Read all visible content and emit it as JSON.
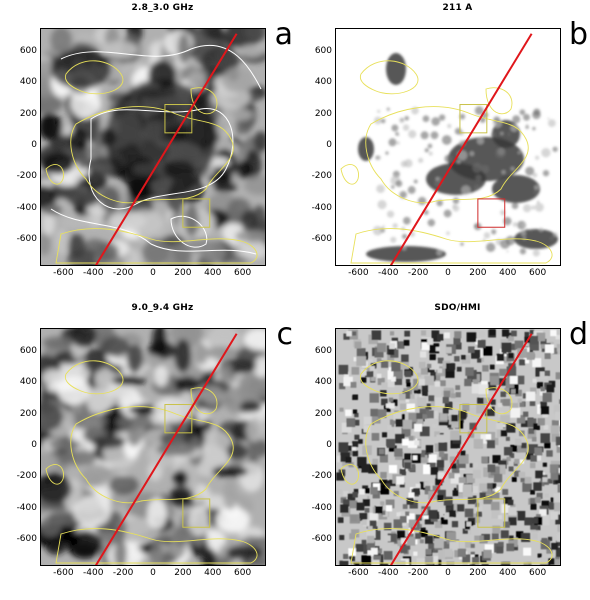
{
  "figure": {
    "panels": [
      {
        "id": "a",
        "title": "2.8_3.0 GHz",
        "letter": "a",
        "style": "radio-low"
      },
      {
        "id": "b",
        "title": "211 A",
        "letter": "b",
        "style": "euv"
      },
      {
        "id": "c",
        "title": "9.0_9.4 GHz",
        "letter": "c",
        "style": "radio-high"
      },
      {
        "id": "d",
        "title": "SDO/HMI",
        "letter": "d",
        "style": "hmi"
      }
    ],
    "y_ticks": [
      "600",
      "400",
      "200",
      "0",
      "-200",
      "-400",
      "-600"
    ],
    "x_ticks": [
      "-600",
      "-400",
      "-200",
      "0",
      "200",
      "400",
      "600"
    ],
    "colors": {
      "line": "#e0161b",
      "contour": "#e8e05a",
      "box_top": "#c9c24a",
      "box_bottom_b": "#d02a2a"
    }
  }
}
